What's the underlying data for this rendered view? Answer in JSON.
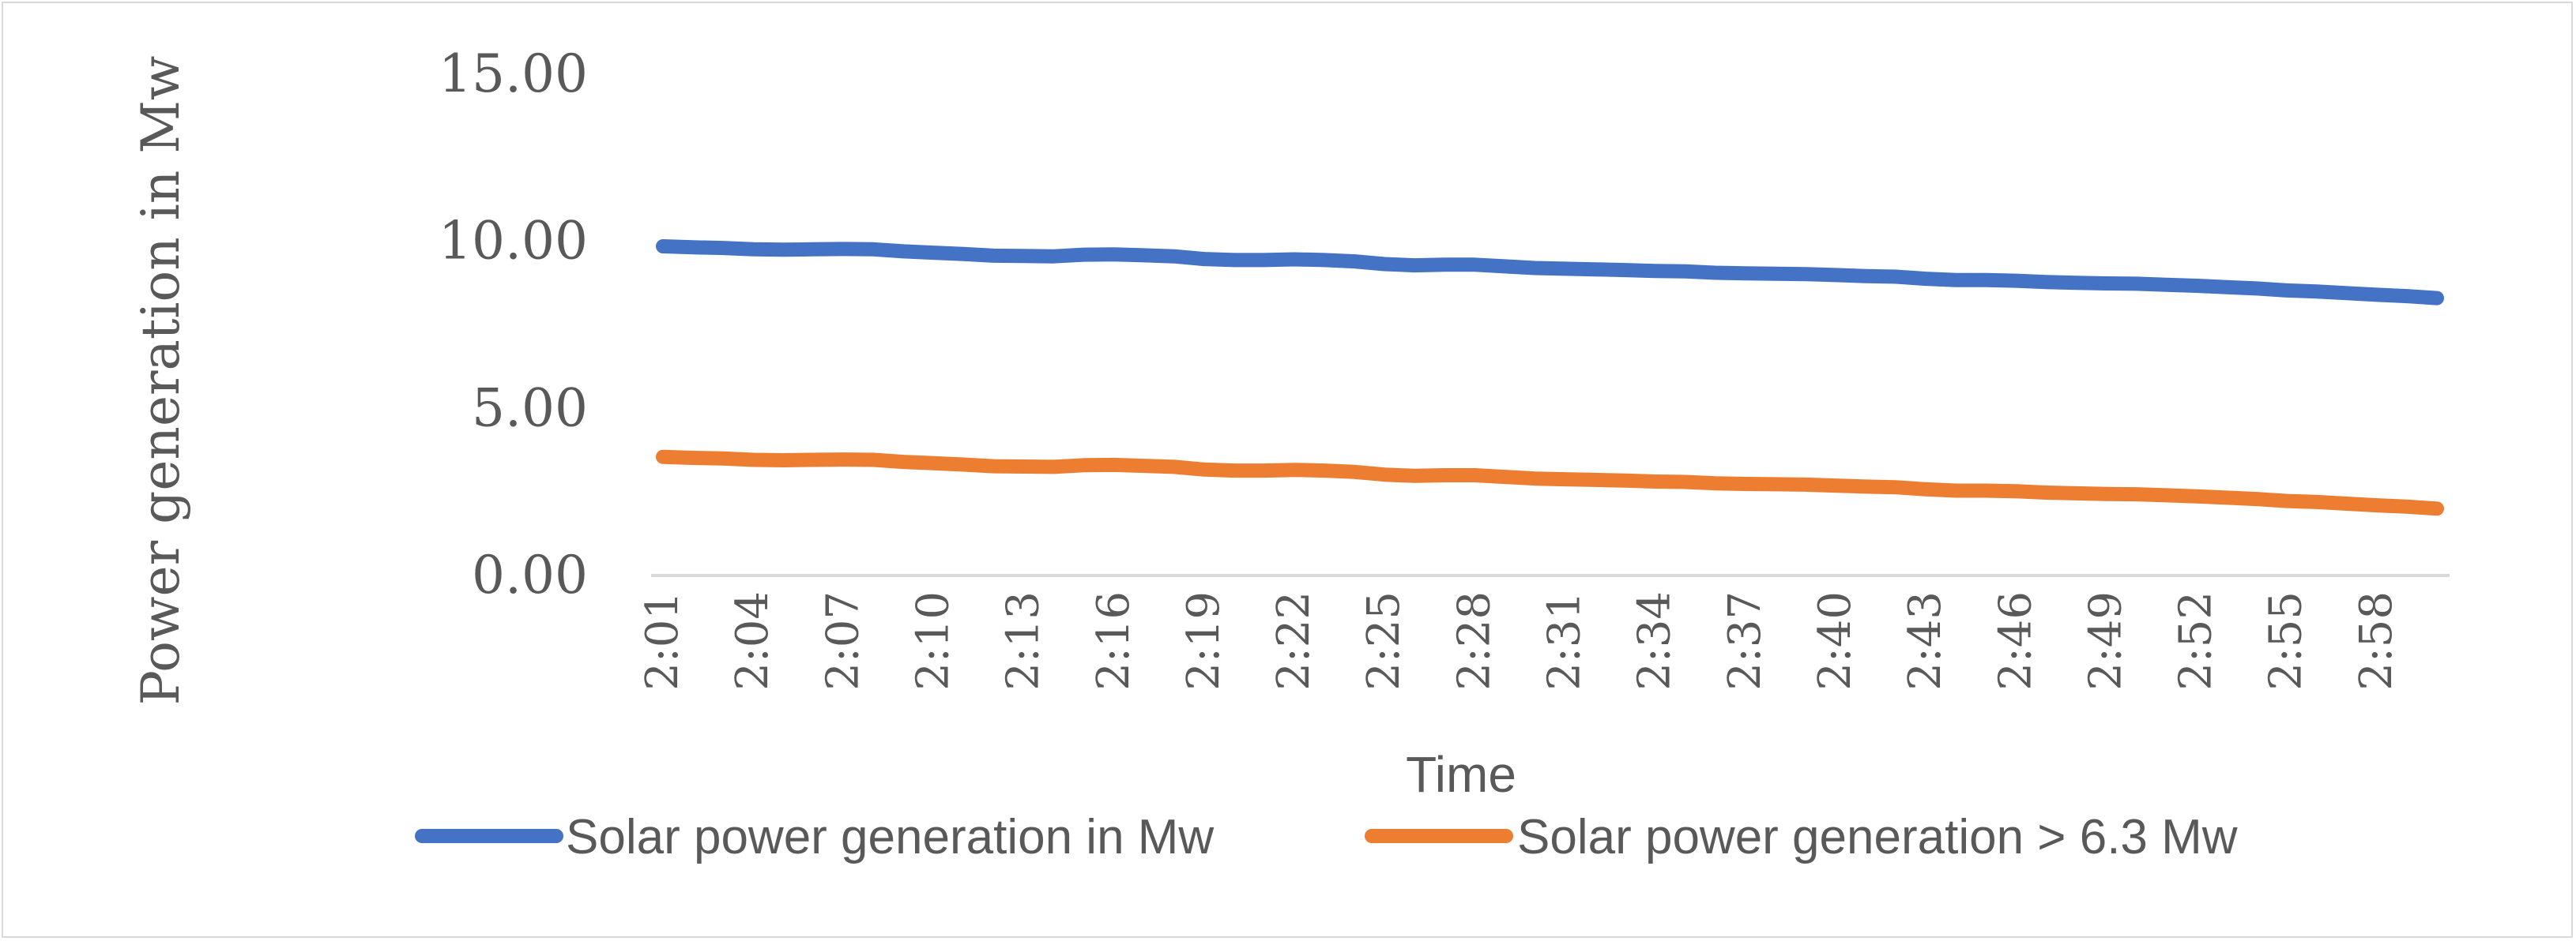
{
  "chart_data": {
    "type": "line",
    "title": "",
    "xlabel": "Time",
    "ylabel": "Power generation in Mw",
    "ylim": [
      0,
      15
    ],
    "yticks": [
      "0.00",
      "5.00",
      "10.00",
      "15.00"
    ],
    "ytick_values": [
      0,
      5,
      10,
      15
    ],
    "x": [
      "2:01",
      "2:02",
      "2:03",
      "2:04",
      "2:05",
      "2:06",
      "2:07",
      "2:08",
      "2:09",
      "2:10",
      "2:11",
      "2:12",
      "2:13",
      "2:14",
      "2:15",
      "2:16",
      "2:17",
      "2:18",
      "2:19",
      "2:20",
      "2:21",
      "2:22",
      "2:23",
      "2:24",
      "2:25",
      "2:26",
      "2:27",
      "2:28",
      "2:29",
      "2:30",
      "2:31",
      "2:32",
      "2:33",
      "2:34",
      "2:35",
      "2:36",
      "2:37",
      "2:38",
      "2:39",
      "2:40",
      "2:41",
      "2:42",
      "2:43",
      "2:44",
      "2:45",
      "2:46",
      "2:47",
      "2:48",
      "2:49",
      "2:50",
      "2:51",
      "2:52",
      "2:53",
      "2:54",
      "2:55",
      "2:56",
      "2:57",
      "2:58",
      "2:59",
      "3:00"
    ],
    "xtick_labels": [
      "2:01",
      "2:04",
      "2:07",
      "2:10",
      "2:13",
      "2:16",
      "2:19",
      "2:22",
      "2:25",
      "2:28",
      "2:31",
      "2:34",
      "2:37",
      "2:40",
      "2:43",
      "2:46",
      "2:49",
      "2:52",
      "2:55",
      "2:58"
    ],
    "grid": false,
    "legend": "bottom",
    "series": [
      {
        "name": "Solar power generation in Mw",
        "color": "#4472c4",
        "values": [
          9.85,
          9.82,
          9.8,
          9.76,
          9.75,
          9.76,
          9.77,
          9.76,
          9.7,
          9.66,
          9.62,
          9.57,
          9.56,
          9.55,
          9.6,
          9.61,
          9.58,
          9.55,
          9.47,
          9.44,
          9.44,
          9.46,
          9.44,
          9.4,
          9.32,
          9.28,
          9.3,
          9.3,
          9.25,
          9.2,
          9.18,
          9.16,
          9.14,
          9.11,
          9.1,
          9.06,
          9.04,
          9.03,
          9.02,
          8.99,
          8.96,
          8.94,
          8.88,
          8.84,
          8.84,
          8.82,
          8.78,
          8.76,
          8.74,
          8.73,
          8.7,
          8.67,
          8.63,
          8.59,
          8.53,
          8.5,
          8.45,
          8.4,
          8.36,
          8.3
        ]
      },
      {
        "name": "Solar power generation > 6.3 Mw",
        "color": "#ed7d31",
        "values": [
          3.55,
          3.52,
          3.5,
          3.46,
          3.45,
          3.46,
          3.47,
          3.46,
          3.4,
          3.36,
          3.32,
          3.27,
          3.26,
          3.25,
          3.3,
          3.31,
          3.28,
          3.25,
          3.17,
          3.14,
          3.14,
          3.16,
          3.14,
          3.1,
          3.02,
          2.98,
          3.0,
          3.0,
          2.95,
          2.9,
          2.88,
          2.86,
          2.84,
          2.81,
          2.8,
          2.76,
          2.74,
          2.73,
          2.72,
          2.69,
          2.66,
          2.64,
          2.58,
          2.54,
          2.54,
          2.52,
          2.48,
          2.46,
          2.44,
          2.43,
          2.4,
          2.37,
          2.33,
          2.29,
          2.23,
          2.2,
          2.15,
          2.1,
          2.06,
          2.0
        ]
      }
    ]
  }
}
